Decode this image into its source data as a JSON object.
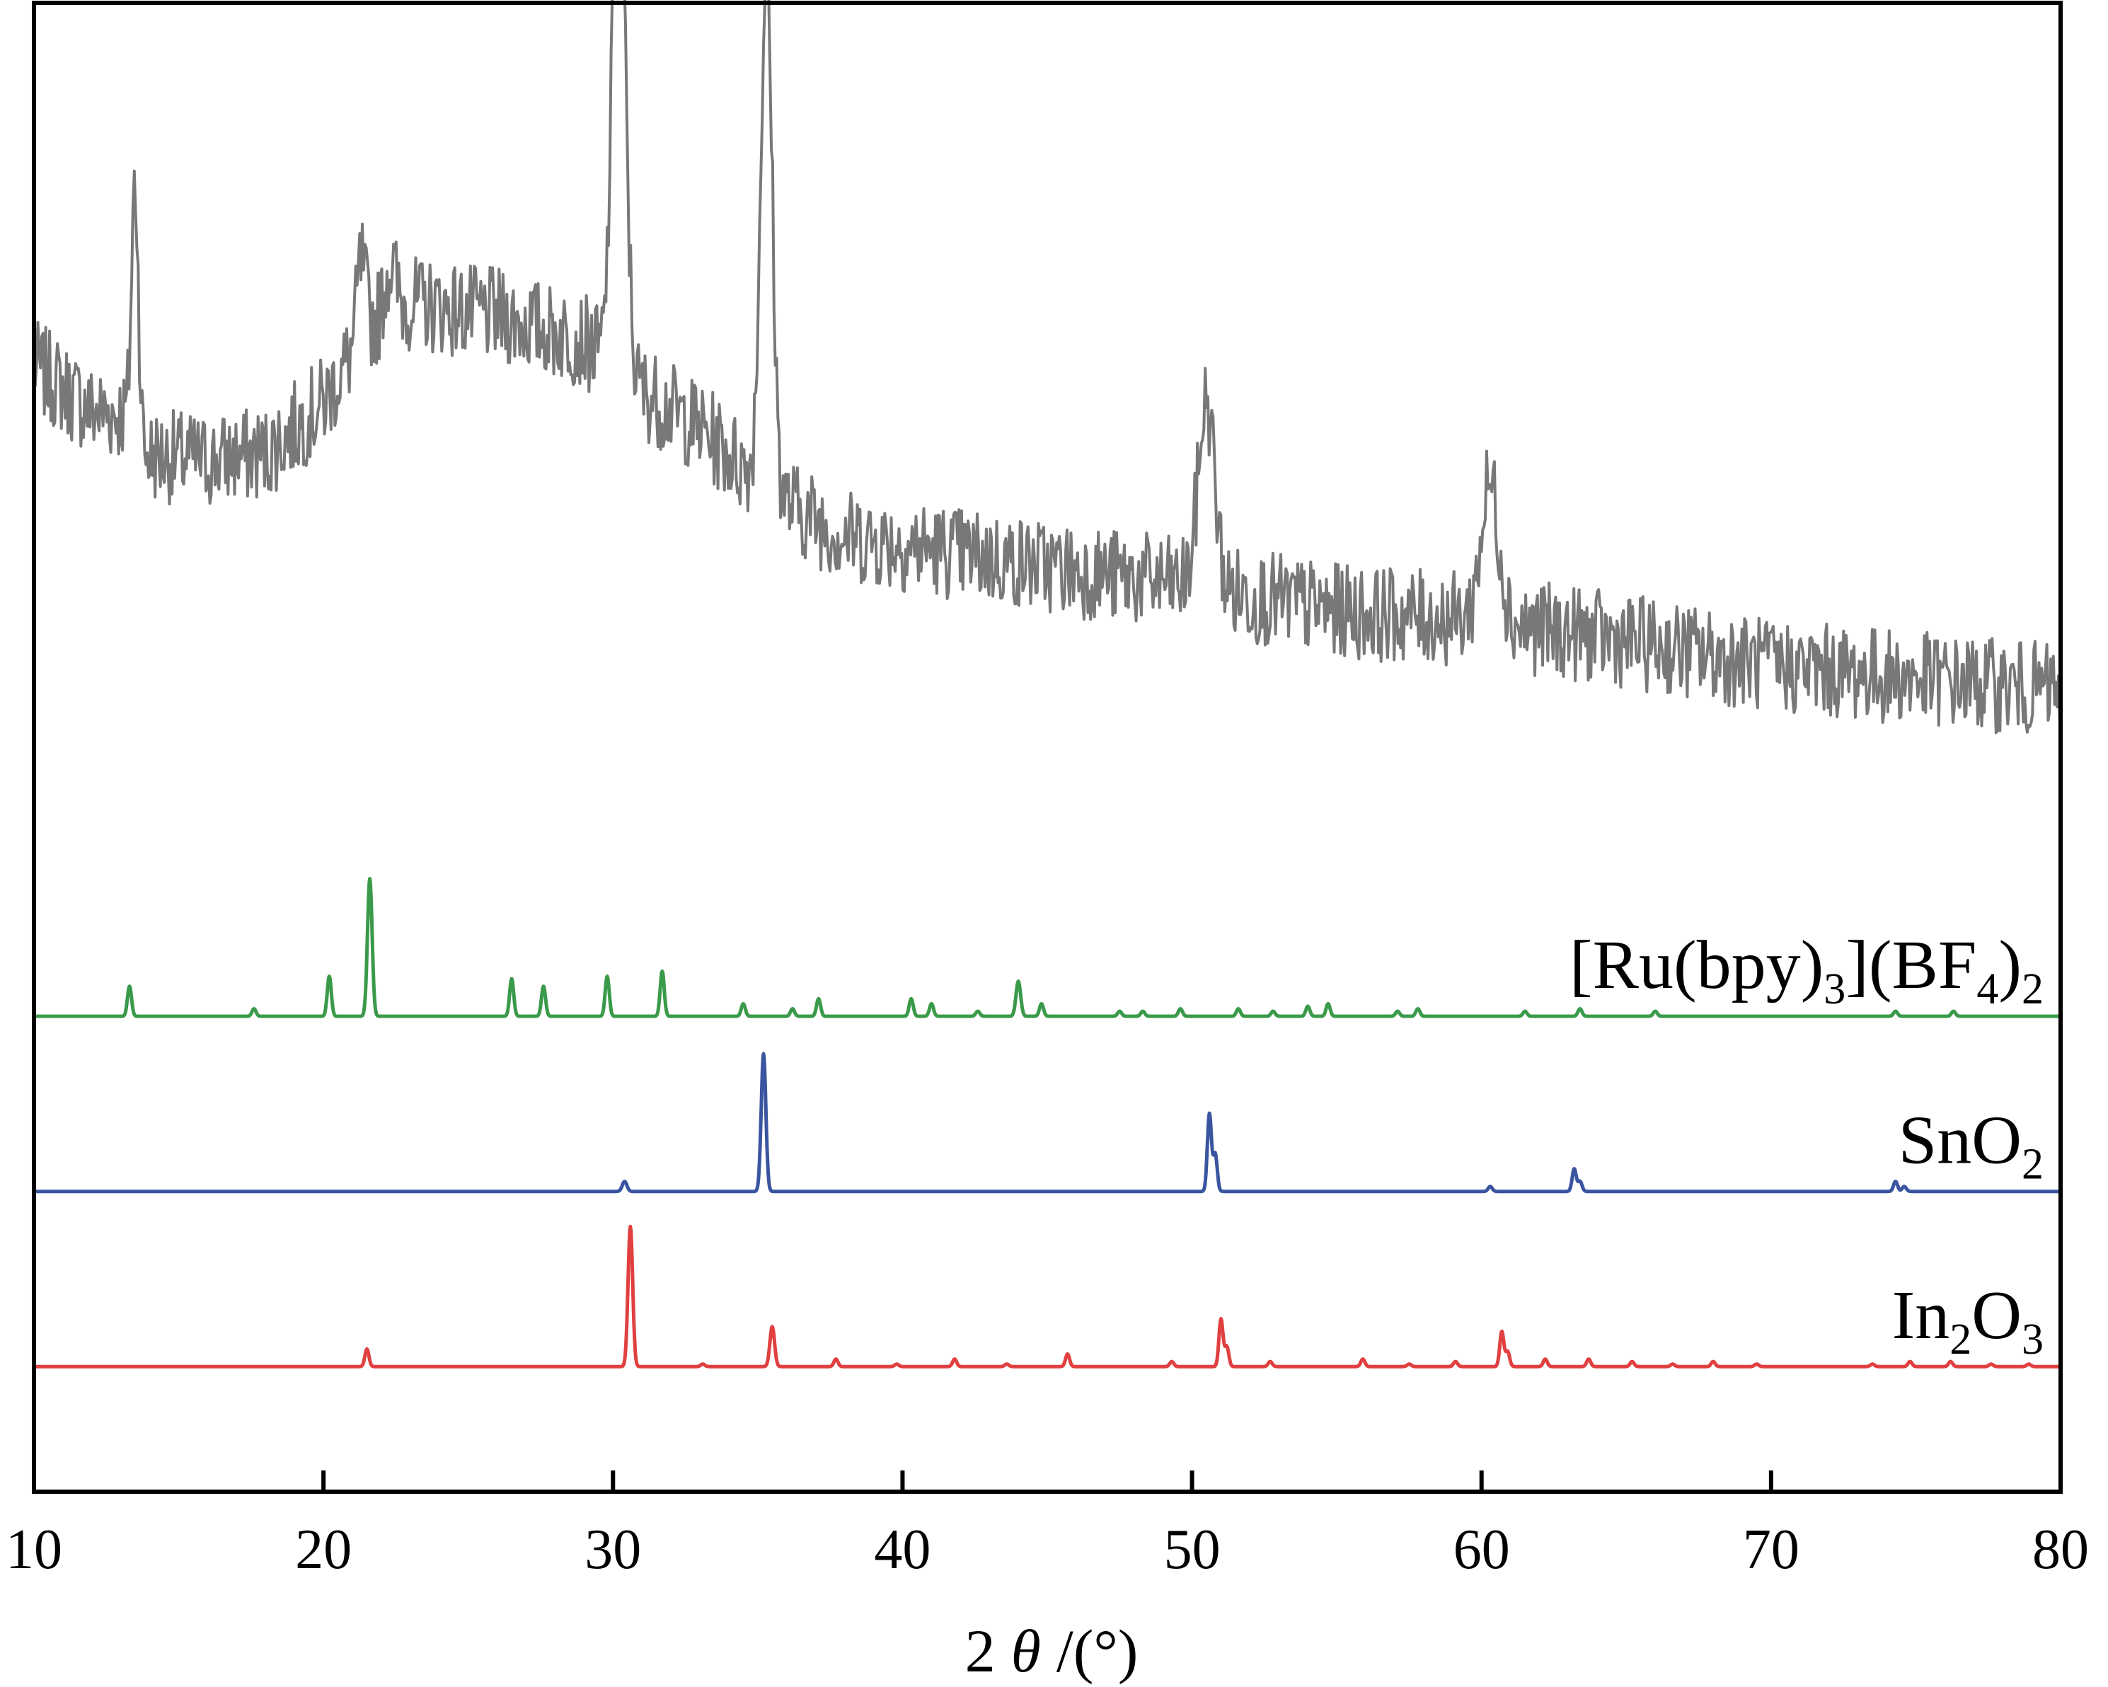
{
  "chart_data": {
    "type": "line",
    "title": "",
    "xlabel": {
      "prefix": "2",
      "symbol": "θ",
      "suffix": "/(°)"
    },
    "ylabel": "",
    "xlim": [
      10,
      80
    ],
    "x_ticks": [
      10,
      20,
      30,
      40,
      50,
      60,
      70,
      80
    ],
    "x_tick_labels": [
      "10",
      "20",
      "30",
      "40",
      "50",
      "60",
      "70",
      "80"
    ],
    "grid": false,
    "legend": "inline labels at right",
    "y_axis_labels_shown": false,
    "series": [
      {
        "label_parts": [],
        "color": "#787878",
        "offset": 3.2,
        "noisy": true,
        "baseline": [
          [
            10,
            1.3
          ],
          [
            12,
            1.12
          ],
          [
            13.4,
            1.1
          ],
          [
            13.6,
            0.95
          ],
          [
            16,
            0.92
          ],
          [
            18,
            0.95
          ],
          [
            20,
            1.15
          ],
          [
            21.5,
            1.45
          ],
          [
            23,
            1.55
          ],
          [
            26,
            1.5
          ],
          [
            29,
            1.4
          ],
          [
            31,
            1.2
          ],
          [
            33,
            1.05
          ],
          [
            34.5,
            0.9
          ],
          [
            36,
            0.75
          ],
          [
            38,
            0.62
          ],
          [
            42,
            0.55
          ],
          [
            46,
            0.48
          ],
          [
            50,
            0.42
          ],
          [
            55,
            0.32
          ],
          [
            60,
            0.28
          ],
          [
            65,
            0.2
          ],
          [
            70,
            0.1
          ],
          [
            75,
            0.05
          ],
          [
            80,
            0.0
          ]
        ],
        "peaks": [
          {
            "x": 13.5,
            "h": 1.0,
            "w": 0.12
          },
          {
            "x": 21.3,
            "h": 0.3,
            "w": 0.15
          },
          {
            "x": 22.3,
            "h": 0.2,
            "w": 0.2
          },
          {
            "x": 30.2,
            "h": 2.2,
            "w": 0.22
          },
          {
            "x": 35.3,
            "h": 2.05,
            "w": 0.2
          },
          {
            "x": 50.5,
            "h": 0.75,
            "w": 0.28
          },
          {
            "x": 60.3,
            "h": 0.55,
            "w": 0.32
          }
        ]
      },
      {
        "label_parts": [
          {
            "text": "[Ru(bpy)",
            "sub": false
          },
          {
            "text": "3",
            "sub": true
          },
          {
            "text": "](BF",
            "sub": false
          },
          {
            "text": "4",
            "sub": true
          },
          {
            "text": ")",
            "sub": false
          },
          {
            "text": "2",
            "sub": true
          }
        ],
        "color": "#3a9a4a",
        "offset": 1.9,
        "noisy": false,
        "peaks": [
          {
            "x": 13.3,
            "h": 0.12,
            "w": 0.07
          },
          {
            "x": 17.6,
            "h": 0.03,
            "w": 0.07
          },
          {
            "x": 20.2,
            "h": 0.16,
            "w": 0.07
          },
          {
            "x": 21.6,
            "h": 0.55,
            "w": 0.08
          },
          {
            "x": 26.5,
            "h": 0.15,
            "w": 0.07
          },
          {
            "x": 27.6,
            "h": 0.12,
            "w": 0.07
          },
          {
            "x": 29.8,
            "h": 0.16,
            "w": 0.07
          },
          {
            "x": 31.7,
            "h": 0.18,
            "w": 0.07
          },
          {
            "x": 34.5,
            "h": 0.05,
            "w": 0.07
          },
          {
            "x": 36.2,
            "h": 0.03,
            "w": 0.07
          },
          {
            "x": 37.1,
            "h": 0.07,
            "w": 0.07
          },
          {
            "x": 40.3,
            "h": 0.07,
            "w": 0.07
          },
          {
            "x": 41.0,
            "h": 0.05,
            "w": 0.07
          },
          {
            "x": 42.6,
            "h": 0.02,
            "w": 0.07
          },
          {
            "x": 44.0,
            "h": 0.14,
            "w": 0.08
          },
          {
            "x": 44.8,
            "h": 0.05,
            "w": 0.07
          },
          {
            "x": 47.5,
            "h": 0.02,
            "w": 0.07
          },
          {
            "x": 48.3,
            "h": 0.02,
            "w": 0.07
          },
          {
            "x": 49.6,
            "h": 0.03,
            "w": 0.07
          },
          {
            "x": 51.6,
            "h": 0.03,
            "w": 0.07
          },
          {
            "x": 52.8,
            "h": 0.02,
            "w": 0.07
          },
          {
            "x": 54.0,
            "h": 0.04,
            "w": 0.07
          },
          {
            "x": 54.7,
            "h": 0.05,
            "w": 0.07
          },
          {
            "x": 57.1,
            "h": 0.02,
            "w": 0.07
          },
          {
            "x": 57.8,
            "h": 0.03,
            "w": 0.07
          },
          {
            "x": 61.5,
            "h": 0.02,
            "w": 0.07
          },
          {
            "x": 63.4,
            "h": 0.03,
            "w": 0.07
          },
          {
            "x": 66.0,
            "h": 0.02,
            "w": 0.07
          },
          {
            "x": 74.3,
            "h": 0.02,
            "w": 0.07
          },
          {
            "x": 76.3,
            "h": 0.02,
            "w": 0.07
          }
        ]
      },
      {
        "label_parts": [
          {
            "text": "SnO",
            "sub": false
          },
          {
            "text": "2",
            "sub": true
          }
        ],
        "color": "#3a55a0",
        "offset": 1.2,
        "noisy": false,
        "peaks": [
          {
            "x": 30.4,
            "h": 0.04,
            "w": 0.08
          },
          {
            "x": 35.2,
            "h": 0.55,
            "w": 0.08
          },
          {
            "x": 50.6,
            "h": 0.31,
            "w": 0.07
          },
          {
            "x": 50.8,
            "h": 0.15,
            "w": 0.07
          },
          {
            "x": 60.3,
            "h": 0.02,
            "w": 0.07
          },
          {
            "x": 63.2,
            "h": 0.09,
            "w": 0.07
          },
          {
            "x": 63.4,
            "h": 0.04,
            "w": 0.07
          },
          {
            "x": 74.3,
            "h": 0.04,
            "w": 0.07
          },
          {
            "x": 74.6,
            "h": 0.02,
            "w": 0.07
          }
        ]
      },
      {
        "label_parts": [
          {
            "text": "In",
            "sub": false
          },
          {
            "text": "2",
            "sub": true
          },
          {
            "text": "O",
            "sub": false
          },
          {
            "text": "3",
            "sub": true
          }
        ],
        "color": "#e04040",
        "offset": 0.5,
        "noisy": false,
        "peaks": [
          {
            "x": 21.5,
            "h": 0.07,
            "w": 0.07
          },
          {
            "x": 30.6,
            "h": 0.56,
            "w": 0.08
          },
          {
            "x": 33.1,
            "h": 0.01,
            "w": 0.07
          },
          {
            "x": 35.5,
            "h": 0.16,
            "w": 0.08
          },
          {
            "x": 37.7,
            "h": 0.03,
            "w": 0.07
          },
          {
            "x": 39.8,
            "h": 0.01,
            "w": 0.07
          },
          {
            "x": 41.8,
            "h": 0.03,
            "w": 0.07
          },
          {
            "x": 43.6,
            "h": 0.01,
            "w": 0.07
          },
          {
            "x": 45.7,
            "h": 0.05,
            "w": 0.07
          },
          {
            "x": 49.3,
            "h": 0.02,
            "w": 0.07
          },
          {
            "x": 51.0,
            "h": 0.19,
            "w": 0.07
          },
          {
            "x": 51.2,
            "h": 0.08,
            "w": 0.07
          },
          {
            "x": 52.7,
            "h": 0.02,
            "w": 0.07
          },
          {
            "x": 55.9,
            "h": 0.03,
            "w": 0.07
          },
          {
            "x": 57.5,
            "h": 0.01,
            "w": 0.07
          },
          {
            "x": 59.1,
            "h": 0.02,
            "w": 0.07
          },
          {
            "x": 60.7,
            "h": 0.14,
            "w": 0.07
          },
          {
            "x": 60.9,
            "h": 0.06,
            "w": 0.07
          },
          {
            "x": 62.2,
            "h": 0.03,
            "w": 0.07
          },
          {
            "x": 63.7,
            "h": 0.03,
            "w": 0.07
          },
          {
            "x": 65.2,
            "h": 0.02,
            "w": 0.07
          },
          {
            "x": 66.6,
            "h": 0.01,
            "w": 0.07
          },
          {
            "x": 68.0,
            "h": 0.02,
            "w": 0.07
          },
          {
            "x": 69.5,
            "h": 0.01,
            "w": 0.07
          },
          {
            "x": 73.5,
            "h": 0.01,
            "w": 0.07
          },
          {
            "x": 74.8,
            "h": 0.02,
            "w": 0.07
          },
          {
            "x": 76.2,
            "h": 0.02,
            "w": 0.07
          },
          {
            "x": 77.6,
            "h": 0.01,
            "w": 0.07
          },
          {
            "x": 78.9,
            "h": 0.01,
            "w": 0.07
          }
        ]
      }
    ]
  }
}
